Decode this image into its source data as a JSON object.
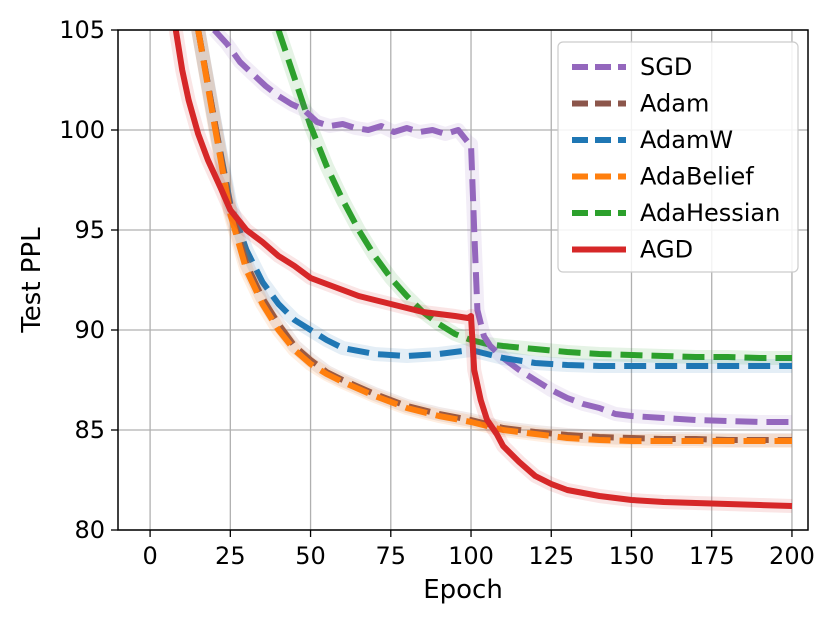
{
  "chart_data": {
    "type": "line",
    "xlabel": "Epoch",
    "ylabel": "Test PPL",
    "xlim": [
      -10,
      205
    ],
    "ylim": [
      80,
      105
    ],
    "xticks": [
      0,
      25,
      50,
      75,
      100,
      125,
      150,
      175,
      200
    ],
    "yticks": [
      80,
      85,
      90,
      95,
      100,
      105
    ],
    "grid": true,
    "legend_position": "top-right",
    "series": [
      {
        "name": "SGD",
        "color": "#9467bd",
        "dash": "dashed",
        "x": [
          20,
          24,
          28,
          32,
          36,
          40,
          44,
          48,
          52,
          56,
          60,
          64,
          68,
          72,
          76,
          80,
          84,
          88,
          92,
          96,
          99,
          100,
          101,
          102,
          104,
          106,
          110,
          115,
          120,
          125,
          130,
          135,
          140,
          145,
          150,
          160,
          170,
          180,
          190,
          200
        ],
        "y": [
          105,
          104.3,
          103.4,
          102.8,
          102.2,
          101.7,
          101.3,
          101.0,
          100.4,
          100.2,
          100.3,
          100.1,
          100.0,
          100.2,
          99.9,
          100.1,
          99.9,
          100.0,
          99.8,
          100.0,
          99.4,
          99.3,
          95.0,
          91.0,
          89.7,
          89.2,
          88.6,
          88.0,
          87.5,
          87.0,
          86.6,
          86.3,
          86.1,
          85.8,
          85.7,
          85.6,
          85.5,
          85.45,
          85.4,
          85.4
        ]
      },
      {
        "name": "Adam",
        "color": "#8c564b",
        "dash": "dashed",
        "x": [
          15,
          20,
          25,
          30,
          35,
          40,
          45,
          50,
          55,
          60,
          70,
          80,
          90,
          100,
          110,
          120,
          130,
          140,
          150,
          160,
          170,
          180,
          190,
          200
        ],
        "y": [
          105,
          100.5,
          96.0,
          93.3,
          91.6,
          90.3,
          89.2,
          88.5,
          87.9,
          87.5,
          86.8,
          86.2,
          85.8,
          85.5,
          85.1,
          84.9,
          84.75,
          84.65,
          84.6,
          84.55,
          84.55,
          84.5,
          84.5,
          84.5
        ]
      },
      {
        "name": "AdamW",
        "color": "#1f77b4",
        "dash": "dashed",
        "x": [
          15,
          20,
          25,
          30,
          35,
          40,
          45,
          50,
          55,
          60,
          70,
          80,
          90,
          100,
          110,
          120,
          130,
          140,
          150,
          160,
          170,
          180,
          190,
          200
        ],
        "y": [
          105,
          100.5,
          96.3,
          94.0,
          92.4,
          91.3,
          90.5,
          90.0,
          89.5,
          89.1,
          88.8,
          88.7,
          88.8,
          89.0,
          88.6,
          88.35,
          88.25,
          88.2,
          88.2,
          88.2,
          88.2,
          88.2,
          88.2,
          88.2
        ]
      },
      {
        "name": "AdaBelief",
        "color": "#ff7f0e",
        "dash": "dashed",
        "x": [
          15,
          20,
          25,
          30,
          35,
          40,
          45,
          50,
          55,
          60,
          70,
          80,
          90,
          100,
          110,
          120,
          130,
          140,
          150,
          160,
          170,
          180,
          190,
          200
        ],
        "y": [
          105,
          100.3,
          95.8,
          93.0,
          91.3,
          90.0,
          89.0,
          88.3,
          87.8,
          87.4,
          86.7,
          86.1,
          85.7,
          85.4,
          85.0,
          84.8,
          84.6,
          84.5,
          84.45,
          84.45,
          84.45,
          84.45,
          84.45,
          84.45
        ]
      },
      {
        "name": "AdaHessian",
        "color": "#2ca02c",
        "dash": "dashed",
        "x": [
          40,
          45,
          50,
          55,
          60,
          65,
          70,
          75,
          80,
          85,
          90,
          95,
          100,
          105,
          110,
          120,
          130,
          140,
          150,
          160,
          170,
          180,
          190,
          200
        ],
        "y": [
          105,
          102.6,
          100.2,
          98.2,
          96.5,
          95.0,
          93.7,
          92.6,
          91.7,
          90.9,
          90.3,
          89.8,
          89.5,
          89.3,
          89.2,
          89.05,
          88.9,
          88.8,
          88.75,
          88.7,
          88.65,
          88.65,
          88.6,
          88.6
        ]
      },
      {
        "name": "AGD",
        "color": "#d62728",
        "dash": "solid",
        "x": [
          8,
          10,
          12,
          15,
          18,
          20,
          22,
          25,
          28,
          30,
          35,
          40,
          45,
          50,
          55,
          60,
          65,
          70,
          75,
          80,
          85,
          90,
          95,
          99,
          100,
          101,
          103,
          105,
          108,
          110,
          115,
          120,
          125,
          130,
          140,
          150,
          160,
          170,
          180,
          190,
          200
        ],
        "y": [
          105,
          103.0,
          101.5,
          99.8,
          98.5,
          97.8,
          97.1,
          96.0,
          95.4,
          95.0,
          94.4,
          93.7,
          93.2,
          92.6,
          92.3,
          92.0,
          91.7,
          91.5,
          91.3,
          91.1,
          90.9,
          90.8,
          90.7,
          90.6,
          90.7,
          88.0,
          86.5,
          85.5,
          84.8,
          84.2,
          83.4,
          82.7,
          82.3,
          82.0,
          81.7,
          81.5,
          81.4,
          81.35,
          81.3,
          81.25,
          81.2
        ]
      }
    ]
  }
}
